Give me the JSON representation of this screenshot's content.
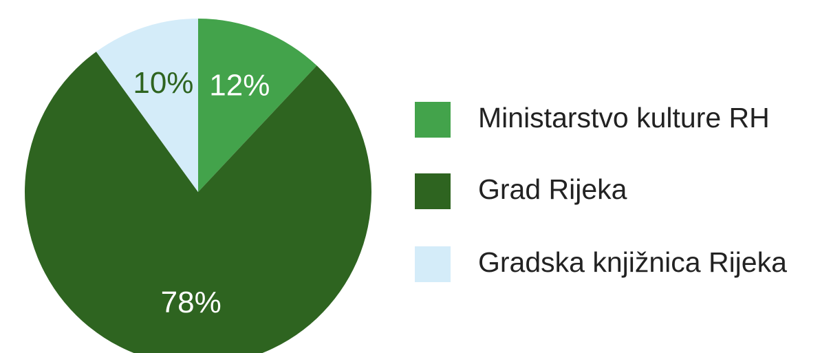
{
  "chart_data": {
    "type": "pie",
    "categories": [
      "Ministarstvo kulture RH",
      "Grad Rijeka",
      "Gradska knjižnica Rijeka"
    ],
    "values": [
      12,
      78,
      10
    ],
    "value_labels": [
      "12%",
      "78%",
      "10%"
    ],
    "colors": [
      "#43a34b",
      "#2e6420",
      "#d4ecf9"
    ],
    "legend": "right"
  }
}
